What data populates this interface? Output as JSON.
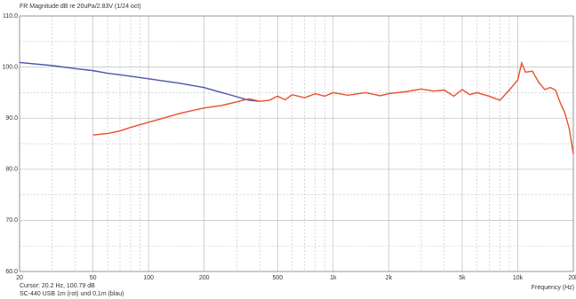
{
  "chart_data": {
    "type": "line",
    "title": "FR Magnitude dB re 20uPa/2.83V (1/24 oct)",
    "xlabel": "Frequency (Hz)",
    "annotations": [
      "Cursor: 20.2 Hz, 100.79 dB",
      "SC-440 USB 1m (rot) und 0,1m (blau)"
    ],
    "xscale": "log",
    "xlim": [
      20,
      20000
    ],
    "xticks": [
      20,
      50,
      100,
      200,
      500,
      {
        "value": 1000,
        "label": "1k"
      },
      {
        "value": 2000,
        "label": "2k"
      },
      {
        "value": 5000,
        "label": "5k"
      },
      {
        "value": 10000,
        "label": "10k"
      },
      {
        "value": 20000,
        "label": "20k"
      }
    ],
    "xgrid_minor": [
      30,
      40,
      60,
      70,
      80,
      90,
      300,
      400,
      600,
      700,
      800,
      900,
      3000,
      4000,
      6000,
      7000,
      8000,
      9000
    ],
    "ylim": [
      60,
      110
    ],
    "yticks": [
      {
        "value": 60,
        "label": "60.0"
      },
      {
        "value": 70,
        "label": "70.0"
      },
      {
        "value": 80,
        "label": "80.0"
      },
      {
        "value": 90,
        "label": "90.0"
      },
      {
        "value": 100,
        "label": "100.0"
      },
      {
        "value": 110,
        "label": "110.0"
      }
    ],
    "ygrid_minor": [
      65,
      75,
      85,
      95,
      105
    ],
    "grid": true,
    "series": [
      {
        "color": "#4a55a8",
        "x": [
          20,
          30,
          40,
          50,
          60,
          80,
          100,
          150,
          200,
          250,
          300,
          350,
          400
        ],
        "values": [
          100.9,
          100.3,
          99.7,
          99.3,
          98.8,
          98.2,
          97.7,
          96.8,
          96,
          95,
          94.2,
          93.5,
          93.3
        ]
      },
      {
        "color": "#e8502a",
        "x": [
          50,
          60,
          70,
          80,
          100,
          120,
          150,
          200,
          250,
          300,
          350,
          400,
          450,
          500,
          550,
          600,
          700,
          800,
          900,
          1000,
          1200,
          1500,
          1800,
          2000,
          2500,
          3000,
          3500,
          4000,
          4500,
          5000,
          5500,
          6000,
          7000,
          8000,
          9000,
          10000,
          10500,
          11000,
          12000,
          13000,
          14000,
          15000,
          16000,
          17000,
          18000,
          19000,
          20000
        ],
        "values": [
          86.7,
          87,
          87.5,
          88.2,
          89.2,
          90,
          91,
          92,
          92.5,
          93.2,
          93.8,
          93.3,
          93.5,
          94.3,
          93.6,
          94.6,
          94,
          94.8,
          94.3,
          95,
          94.5,
          95,
          94.4,
          94.8,
          95.2,
          95.7,
          95.3,
          95.5,
          94.3,
          95.6,
          94.6,
          95,
          94.3,
          93.5,
          95.5,
          97.5,
          100.8,
          99,
          99.2,
          97,
          95.6,
          96,
          95.5,
          93,
          91,
          88,
          83
        ]
      }
    ]
  }
}
